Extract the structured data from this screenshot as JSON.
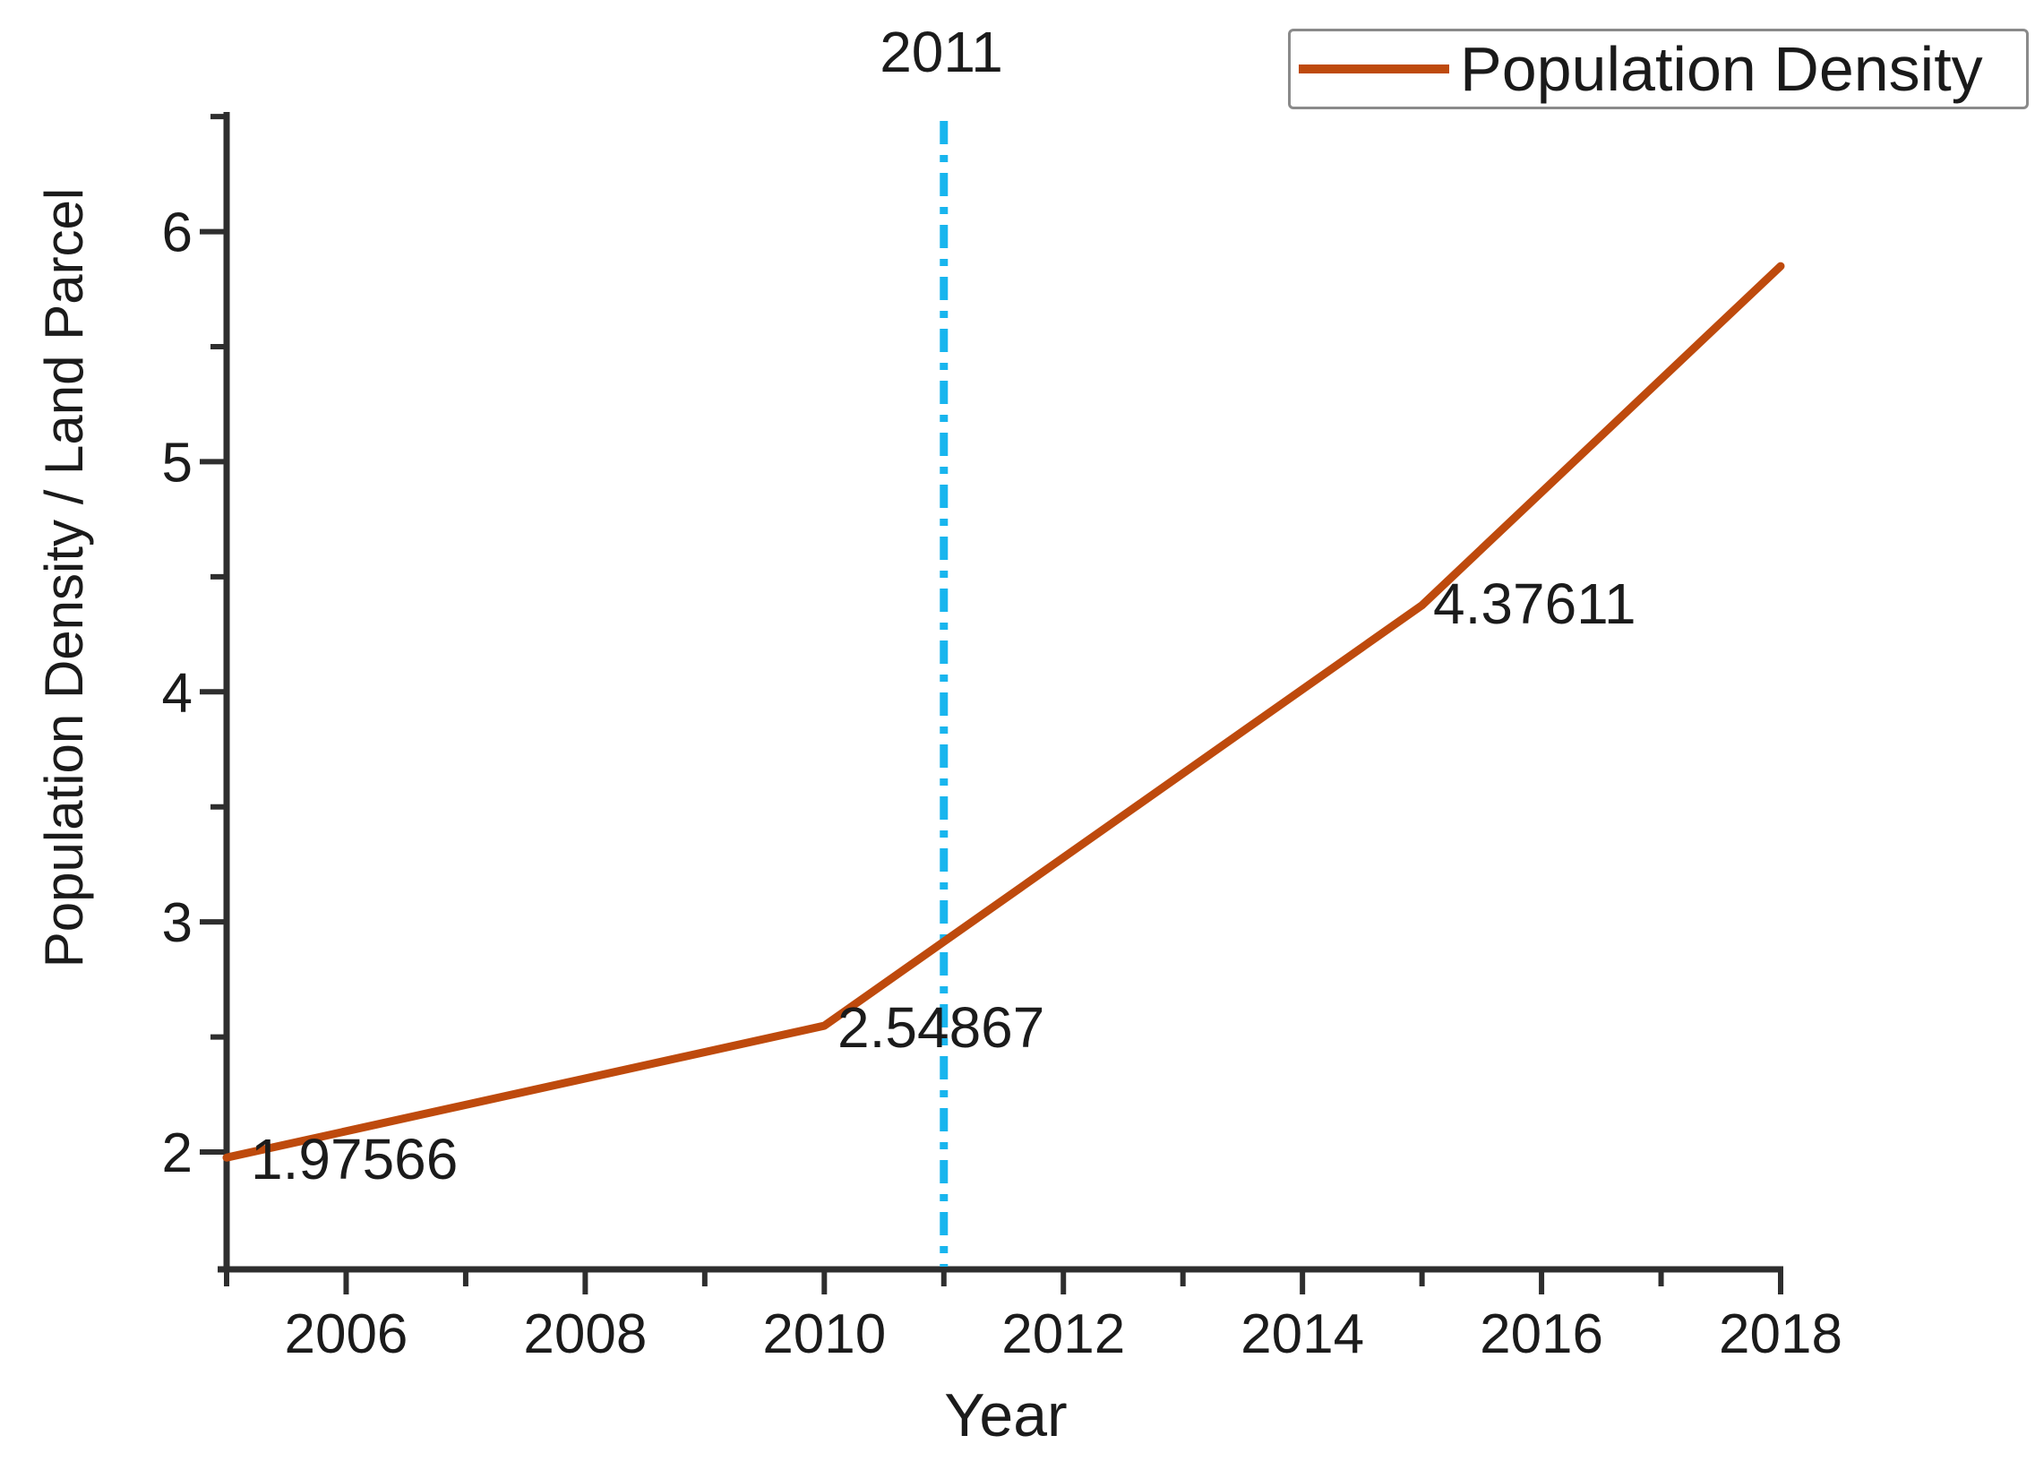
{
  "chart_data": {
    "type": "line",
    "title": "",
    "xlabel": "Year",
    "ylabel": "Population Density / Land Parcel",
    "x": [
      2005,
      2010,
      2015,
      2018
    ],
    "series": [
      {
        "name": "Population Density",
        "color": "#BE4A0D",
        "values": [
          1.97566,
          2.54867,
          4.37611,
          5.85
        ]
      }
    ],
    "point_labels": [
      {
        "text": "1.97566",
        "x": 2005,
        "y": 1.97566
      },
      {
        "text": "2.54867",
        "x": 2010,
        "y": 2.54867
      },
      {
        "text": "4.37611",
        "x": 2015,
        "y": 4.37611
      }
    ],
    "annotation": {
      "text": "2011",
      "x": 2011
    },
    "reference_line": {
      "x": 2011,
      "style": "dash-dot",
      "color": "#18B5EE"
    },
    "x_ticks_major": [
      2006,
      2008,
      2010,
      2012,
      2014,
      2016,
      2018
    ],
    "x_tick_labels": [
      "2006",
      "2008",
      "2010",
      "2012",
      "2014",
      "2016",
      "2018"
    ],
    "x_ticks_minor": [
      2005,
      2007,
      2009,
      2011,
      2013,
      2015,
      2017
    ],
    "y_ticks_major": [
      2,
      3,
      4,
      5,
      6
    ],
    "y_tick_labels": [
      "2",
      "3",
      "4",
      "5",
      "6"
    ],
    "y_ticks_minor": [
      2.5,
      3.5,
      4.5,
      5.5,
      6.5
    ],
    "xlim": [
      2005,
      2018
    ],
    "ylim": [
      1.49,
      6.52
    ],
    "grid": false,
    "legend": {
      "position": "top-right",
      "entries": [
        "Population Density"
      ]
    }
  },
  "axes": {
    "x_title": "Year",
    "y_title": "Population Density / Land Parcel"
  },
  "labels": {
    "p2005": "1.97566",
    "p2010": "2.54867",
    "p2015": "4.37611"
  },
  "legend": {
    "label": "Population Density"
  },
  "colors": {
    "series": "#BE4A0D",
    "reference": "#18B5EE",
    "axis": "#2e2e2e",
    "text": "#1b1b1b",
    "legend_border": "#8a8a8a"
  }
}
